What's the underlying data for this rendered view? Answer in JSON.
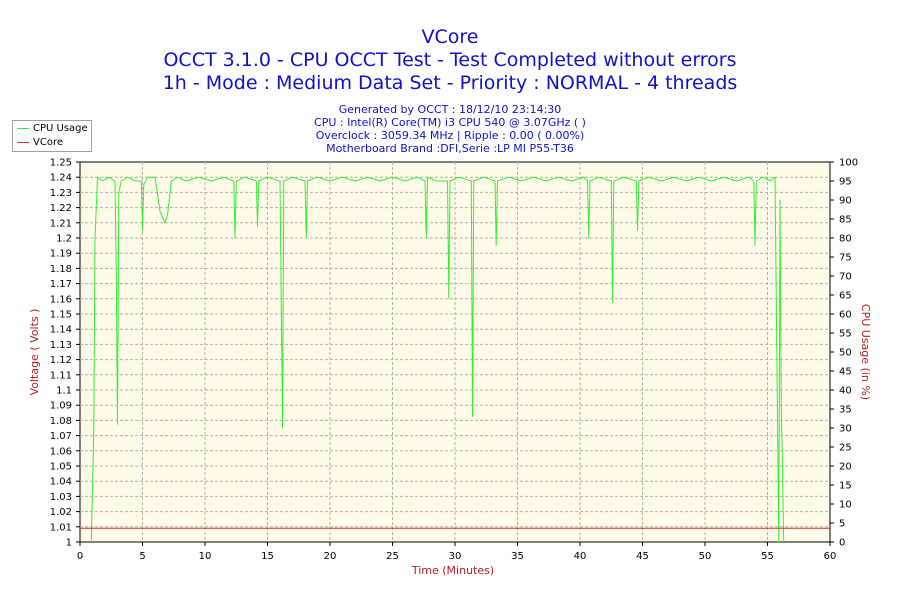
{
  "colors": {
    "title": "#1010c8",
    "plot_background": "#fffbe8",
    "grid": "#b0b0b0",
    "cpu_usage": "#33ee33",
    "vcore": "#cc3333",
    "axis_label": "#b02020"
  },
  "legend": [
    {
      "name": "CPU Usage",
      "color": "#33ee33"
    },
    {
      "name": "VCore",
      "color": "#cc3333"
    }
  ],
  "chart_data": {
    "type": "line",
    "title": "VCore",
    "subtitle_lines": [
      "OCCT 3.1.0 - CPU OCCT Test - Test Completed without errors",
      "1h - Mode : Medium Data Set - Priority : NORMAL - 4 threads"
    ],
    "info_lines": [
      "Generated by OCCT : 18/12/10 23:14:30",
      "CPU : Intel(R) Core(TM) i3 CPU 540 @ 3.07GHz (  )",
      "Overclock : 3059.34 MHz | Ripple : 0.00 ( 0.00%)",
      "Motherboard Brand :DFI,Serie :LP MI P55-T36"
    ],
    "xlabel": "Time (Minutes)",
    "ylabel": "Voltage ( Volts )",
    "y2label": "CPU Usage (in %)",
    "xlim": [
      0,
      60
    ],
    "ylim": [
      1,
      1.25
    ],
    "y2lim": [
      0,
      100
    ],
    "x_ticks": [
      "0",
      "5",
      "10",
      "15",
      "20",
      "25",
      "30",
      "35",
      "40",
      "45",
      "50",
      "55",
      "60"
    ],
    "y_ticks": [
      "1",
      "1.01",
      "1.02",
      "1.03",
      "1.04",
      "1.05",
      "1.06",
      "1.07",
      "1.08",
      "1.09",
      "1.1",
      "1.11",
      "1.12",
      "1.13",
      "1.14",
      "1.15",
      "1.16",
      "1.17",
      "1.18",
      "1.19",
      "1.2",
      "1.21",
      "1.22",
      "1.23",
      "1.24",
      "1.25"
    ],
    "y2_ticks": [
      "0",
      "5",
      "10",
      "15",
      "20",
      "25",
      "30",
      "35",
      "40",
      "45",
      "50",
      "55",
      "60",
      "65",
      "70",
      "75",
      "80",
      "85",
      "90",
      "95",
      "100"
    ],
    "grid": true,
    "legend_position": "top-left",
    "series": [
      {
        "name": "CPU Usage",
        "axis": "right",
        "x": [
          0.9,
          1.1,
          1.2,
          1.4,
          1.8,
          2.3,
          2.8,
          2.9,
          3.0,
          3.1,
          3.3,
          3.8,
          4.4,
          4.9,
          5.0,
          5.1,
          5.4,
          6.0,
          6.4,
          6.8,
          7.0,
          7.3,
          7.8,
          8.5,
          9.5,
          10.5,
          11.5,
          12.3,
          12.4,
          12.5,
          13.2,
          14.1,
          14.2,
          14.3,
          15.0,
          16.0,
          16.1,
          16.2,
          16.3,
          17.0,
          18.0,
          18.1,
          18.2,
          19.0,
          20.0,
          21.0,
          22.0,
          23.0,
          24.0,
          25.0,
          26.0,
          27.0,
          27.6,
          27.7,
          27.8,
          28.5,
          29.4,
          29.5,
          29.6,
          30.3,
          31.3,
          31.4,
          31.5,
          32.3,
          33.2,
          33.3,
          33.4,
          34.3,
          35.3,
          36.3,
          37.3,
          38.3,
          39.3,
          40.3,
          40.6,
          40.7,
          40.8,
          41.5,
          42.5,
          42.6,
          42.7,
          43.5,
          44.5,
          44.6,
          44.7,
          45.5,
          46.5,
          47.5,
          48.5,
          49.5,
          50.5,
          51.5,
          52.5,
          53.5,
          53.9,
          54.0,
          54.1,
          54.6,
          55.2,
          55.6,
          55.8,
          55.9,
          56.0,
          56.1,
          56.3
        ],
        "values": [
          0,
          30,
          80,
          96,
          95,
          96,
          95,
          70,
          31,
          92,
          95,
          96,
          95,
          95,
          82,
          94,
          96,
          96,
          87,
          84,
          86,
          95,
          96,
          95,
          96,
          95,
          96,
          95,
          80,
          95,
          96,
          95,
          83,
          95,
          96,
          95,
          62,
          30,
          95,
          96,
          95,
          80,
          95,
          96,
          95,
          96,
          95,
          96,
          95,
          96,
          95,
          96,
          95,
          80,
          96,
          95,
          95,
          64,
          95,
          96,
          95,
          33,
          95,
          96,
          95,
          78,
          95,
          96,
          95,
          96,
          95,
          96,
          95,
          96,
          95,
          80,
          95,
          96,
          95,
          63,
          95,
          96,
          95,
          82,
          95,
          96,
          95,
          96,
          95,
          96,
          95,
          96,
          95,
          96,
          95,
          78,
          95,
          96,
          95,
          96,
          33,
          0,
          90,
          36,
          0
        ]
      },
      {
        "name": "VCore",
        "axis": "left",
        "x": [
          0,
          60
        ],
        "values": [
          1.009,
          1.009
        ]
      }
    ]
  }
}
